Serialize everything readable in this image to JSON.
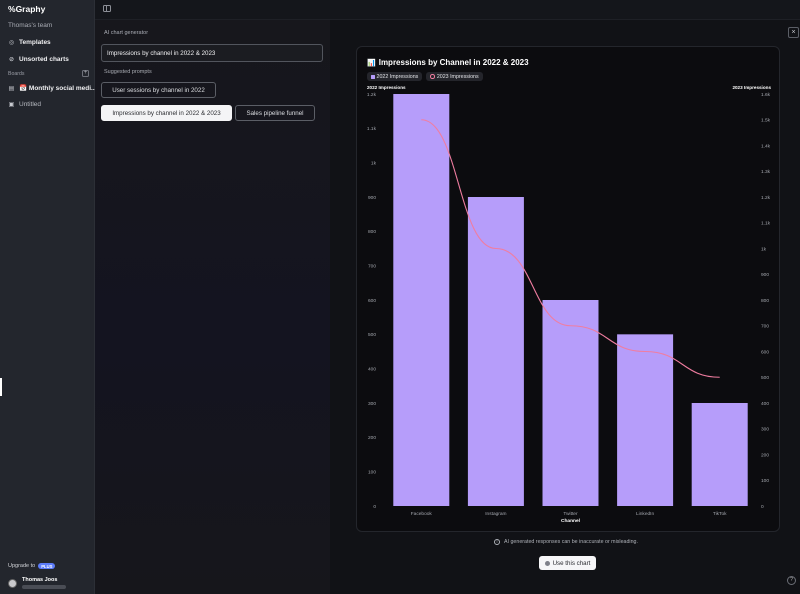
{
  "sidebar": {
    "logo": "Graphy",
    "team": "Thomas's team",
    "templates": "Templates",
    "unsorted": "Unsorted charts",
    "boards_label": "Boards",
    "boards": [
      {
        "label": "📅 Monthly social medi..."
      },
      {
        "label": "Untitled"
      }
    ],
    "upgrade_text": "Upgrade to",
    "plan_badge": "PLUS",
    "user_name": "Thomas Joos"
  },
  "left_panel": {
    "title": "AI chart generator",
    "prompt_value": "Impressions by channel in 2022 & 2023",
    "suggested_label": "Suggested prompts",
    "prompts": [
      {
        "label": "User sessions by channel in 2022"
      },
      {
        "label": "Impressions by channel in 2022 & 2023"
      },
      {
        "label": "Sales pipeline funnel"
      }
    ]
  },
  "right": {
    "disclaimer": "AI generated responses can be inaccurate or misleading.",
    "use_button": "Use this chart"
  },
  "chart_data": {
    "type": "bar",
    "title": "Impressions by Channel in 2022 & 2023",
    "title_icon": "📊",
    "categories": [
      "Facebook",
      "Instagram",
      "Twitter",
      "LinkedIn",
      "TikTok"
    ],
    "series": [
      {
        "name": "2022 Impressions",
        "type": "bar",
        "axis": "left",
        "color": "#b69dfa",
        "values": [
          1200,
          900,
          600,
          500,
          300
        ]
      },
      {
        "name": "2023 Impressions",
        "type": "line",
        "axis": "right",
        "color": "#f07da0",
        "values": [
          1500,
          1000,
          700,
          600,
          500
        ]
      }
    ],
    "xlabel": "Channel",
    "ylabel_left": "2022 Impressions",
    "ylabel_right": "2023 Impressions",
    "y_left": {
      "min": 0,
      "max": 1200,
      "ticks": [
        0,
        100,
        200,
        300,
        400,
        500,
        600,
        700,
        800,
        900,
        "1k",
        "1.1k",
        "1.2k"
      ]
    },
    "y_right": {
      "min": 0,
      "max": 1600,
      "ticks": [
        0,
        100,
        200,
        300,
        400,
        500,
        600,
        700,
        800,
        900,
        "1k",
        "1.1k",
        "1.2k",
        "1.3k",
        "1.4k",
        "1.5k",
        "1.6k"
      ]
    },
    "grid": false,
    "legend_position": "top-left"
  }
}
